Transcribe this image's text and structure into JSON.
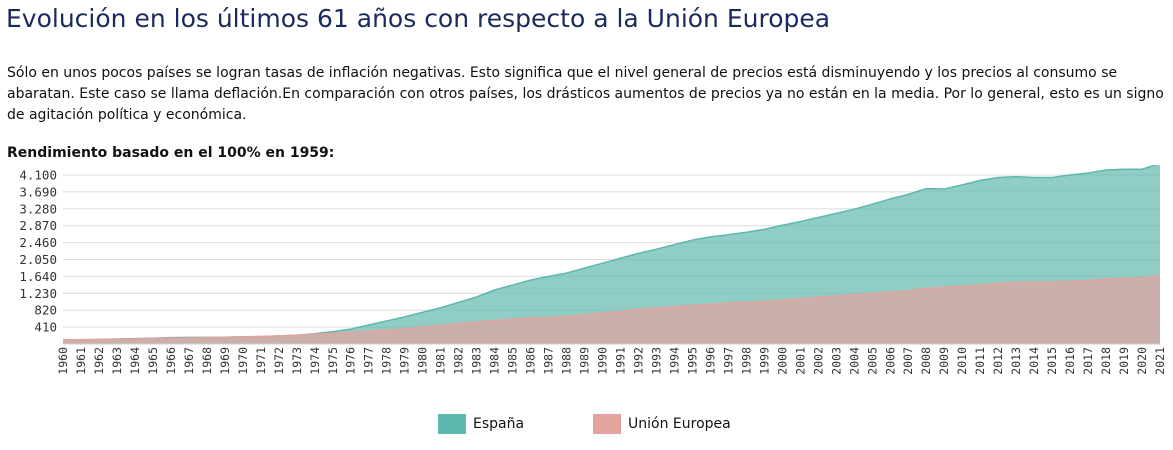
{
  "header": {
    "title": "Evolución en los últimos 61 años con respecto a la Unión Europea"
  },
  "intro": {
    "text": "Sólo en unos pocos países se logran tasas de inflación negativas. Esto significa que el nivel general de precios está disminuyendo y los precios al consumo se abaratan. Este caso se llama deflación.En comparación con otros países, los drásticos aumentos de precios ya no están en la media. Por lo general, esto es un signo de agitación política y económica."
  },
  "chart_data": {
    "type": "area",
    "title": "Rendimiento basado en el 100% en 1959:",
    "xlabel": "",
    "ylabel": "",
    "ylim": [
      0,
      4100
    ],
    "yticks": [
      "4.100",
      "3.690",
      "3.280",
      "2.870",
      "2.460",
      "2.050",
      "1.640",
      "1.230",
      "820",
      "410"
    ],
    "ytick_values": [
      4100,
      3690,
      3280,
      2870,
      2460,
      2050,
      1640,
      1230,
      820,
      410
    ],
    "grid": true,
    "legend": "bottom-center",
    "x": [
      "1960",
      "1961",
      "1962",
      "1963",
      "1964",
      "1965",
      "1966",
      "1967",
      "1968",
      "1969",
      "1970",
      "1971",
      "1972",
      "1973",
      "1974",
      "1975",
      "1976",
      "1977",
      "1978",
      "1979",
      "1980",
      "1981",
      "1982",
      "1983",
      "1984",
      "1985",
      "1986",
      "1987",
      "1988",
      "1989",
      "1990",
      "1991",
      "1992",
      "1993",
      "1994",
      "1995",
      "1996",
      "1997",
      "1998",
      "1999",
      "2000",
      "2001",
      "2002",
      "2003",
      "2004",
      "2005",
      "2006",
      "2007",
      "2008",
      "2009",
      "2010",
      "2011",
      "2012",
      "2013",
      "2014",
      "2015",
      "2016",
      "2017",
      "2018",
      "2019",
      "2020",
      "2021"
    ],
    "series": [
      {
        "name": "España",
        "color": "#5fb8ad",
        "values": [
          103,
          104,
          110,
          120,
          130,
          140,
          155,
          160,
          160,
          165,
          175,
          180,
          195,
          215,
          250,
          300,
          360,
          460,
          560,
          660,
          770,
          880,
          1010,
          1140,
          1310,
          1430,
          1550,
          1640,
          1720,
          1840,
          1960,
          2080,
          2200,
          2300,
          2410,
          2520,
          2600,
          2650,
          2710,
          2780,
          2880,
          2970,
          3070,
          3170,
          3270,
          3390,
          3520,
          3630,
          3770,
          3760,
          3860,
          3970,
          4040,
          4060,
          4040,
          4040,
          4100,
          4150,
          4220,
          4240,
          4240,
          4380
        ]
      },
      {
        "name": "Unión Europea",
        "color": "#e3a39f",
        "values": [
          103,
          106,
          110,
          115,
          122,
          130,
          138,
          146,
          154,
          162,
          172,
          182,
          196,
          212,
          236,
          262,
          286,
          310,
          338,
          368,
          410,
          450,
          495,
          535,
          570,
          600,
          625,
          640,
          665,
          710,
          750,
          790,
          840,
          870,
          905,
          935,
          965,
          990,
          1010,
          1030,
          1065,
          1100,
          1135,
          1165,
          1195,
          1225,
          1255,
          1285,
          1350,
          1370,
          1400,
          1430,
          1470,
          1495,
          1505,
          1510,
          1520,
          1540,
          1570,
          1590,
          1600,
          1660
        ]
      }
    ]
  }
}
